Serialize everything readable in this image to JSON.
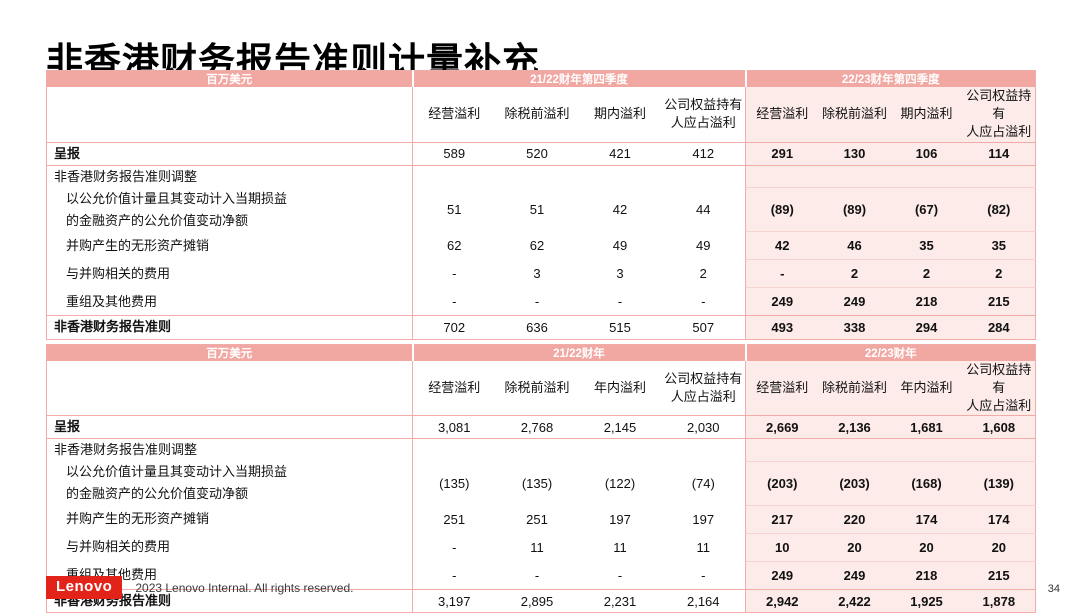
{
  "page": {
    "title": "非香港财务报告准则计量补充",
    "footer": {
      "logo_text": "Lenovo",
      "copyright": "2023 Lenovo Internal. All rights reserved.",
      "page_number": "34"
    },
    "colors": {
      "band_pink": "#F1A7A2",
      "highlight_pink": "#FCEBE9",
      "border_pink": "#F2ACA7",
      "lenovo_red": "#E2231A"
    }
  },
  "tables": [
    {
      "name": "quarterly",
      "unit_label": "百万美元",
      "groups": [
        {
          "label": "21/22财年第四季度",
          "highlight": false
        },
        {
          "label": "22/23财年第四季度",
          "highlight": true
        }
      ],
      "column_headers": [
        "经营溢利",
        "除税前溢利",
        "期内溢利",
        "公司权益持有\n人应占溢利"
      ],
      "rows": [
        {
          "type": "reported",
          "label": "呈报",
          "prev": [
            "589",
            "520",
            "421",
            "412"
          ],
          "curr": [
            "291",
            "130",
            "106",
            "114"
          ]
        },
        {
          "type": "section",
          "label": "非香港财务报告准则调整",
          "prev": [
            "",
            "",
            "",
            ""
          ],
          "curr": [
            "",
            "",
            "",
            ""
          ]
        },
        {
          "type": "adj2",
          "label": "以公允价值计量且其变动计入当期损益\n的金融资产的公允价值变动净额",
          "prev": [
            "51",
            "51",
            "42",
            "44"
          ],
          "curr": [
            "(89)",
            "(89)",
            "(67)",
            "(82)"
          ]
        },
        {
          "type": "adj",
          "label": "并购产生的无形资产摊销",
          "prev": [
            "62",
            "62",
            "49",
            "49"
          ],
          "curr": [
            "42",
            "46",
            "35",
            "35"
          ]
        },
        {
          "type": "adj",
          "label": "与并购相关的费用",
          "prev": [
            "-",
            "3",
            "3",
            "2"
          ],
          "curr": [
            "-",
            "2",
            "2",
            "2"
          ]
        },
        {
          "type": "adj",
          "label": "重组及其他费用",
          "prev": [
            "-",
            "-",
            "-",
            "-"
          ],
          "curr": [
            "249",
            "249",
            "218",
            "215"
          ]
        },
        {
          "type": "total",
          "label": "非香港财务报告准则",
          "prev": [
            "702",
            "636",
            "515",
            "507"
          ],
          "curr": [
            "493",
            "338",
            "294",
            "284"
          ]
        }
      ]
    },
    {
      "name": "annual",
      "unit_label": "百万美元",
      "groups": [
        {
          "label": "21/22财年",
          "highlight": false
        },
        {
          "label": "22/23财年",
          "highlight": true
        }
      ],
      "column_headers": [
        "经营溢利",
        "除税前溢利",
        "年内溢利",
        "公司权益持有\n人应占溢利"
      ],
      "rows": [
        {
          "type": "reported",
          "label": "呈报",
          "prev": [
            "3,081",
            "2,768",
            "2,145",
            "2,030"
          ],
          "curr": [
            "2,669",
            "2,136",
            "1,681",
            "1,608"
          ]
        },
        {
          "type": "section",
          "label": "非香港财务报告准则调整",
          "prev": [
            "",
            "",
            "",
            ""
          ],
          "curr": [
            "",
            "",
            "",
            ""
          ]
        },
        {
          "type": "adj2",
          "label": "以公允价值计量且其变动计入当期损益\n的金融资产的公允价值变动净额",
          "prev": [
            "(135)",
            "(135)",
            "(122)",
            "(74)"
          ],
          "curr": [
            "(203)",
            "(203)",
            "(168)",
            "(139)"
          ]
        },
        {
          "type": "adj",
          "label": "并购产生的无形资产摊销",
          "prev": [
            "251",
            "251",
            "197",
            "197"
          ],
          "curr": [
            "217",
            "220",
            "174",
            "174"
          ]
        },
        {
          "type": "adj",
          "label": "与并购相关的费用",
          "prev": [
            "-",
            "11",
            "11",
            "11"
          ],
          "curr": [
            "10",
            "20",
            "20",
            "20"
          ]
        },
        {
          "type": "adj",
          "label": "重组及其他费用",
          "prev": [
            "-",
            "-",
            "-",
            "-"
          ],
          "curr": [
            "249",
            "249",
            "218",
            "215"
          ]
        },
        {
          "type": "total",
          "label": "非香港财务报告准则",
          "prev": [
            "3,197",
            "2,895",
            "2,231",
            "2,164"
          ],
          "curr": [
            "2,942",
            "2,422",
            "1,925",
            "1,878"
          ]
        }
      ]
    }
  ]
}
